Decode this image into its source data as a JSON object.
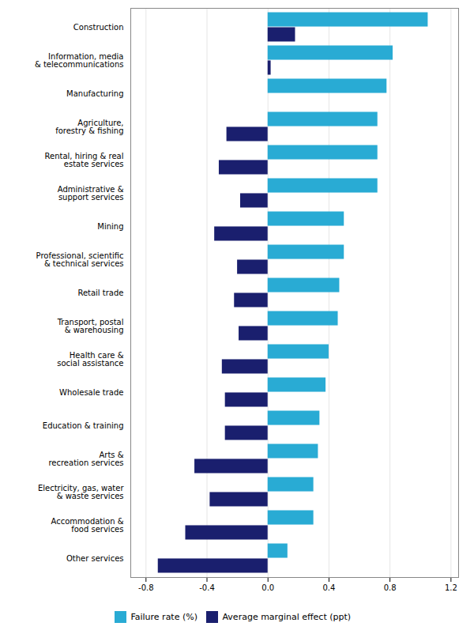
{
  "chart_data": {
    "type": "bar",
    "orientation": "horizontal",
    "categories": [
      "Construction",
      "Information, media\n& telecommunications",
      "Manufacturing",
      "Agriculture,\nforestry & fishing",
      "Rental, hiring & real\nestate services",
      "Administrative &\nsupport services",
      "Mining",
      "Professional, scientific\n& technical services",
      "Retail trade",
      "Transport, postal\n& warehousing",
      "Health care &\nsocial assistance",
      "Wholesale trade",
      "Education & training",
      "Arts &\nrecreation services",
      "Electricity, gas, water\n& waste services",
      "Accommodation &\nfood services",
      "Other services"
    ],
    "series": [
      {
        "name": "Failure rate (%)",
        "color": "#29ABD4",
        "values": [
          1.05,
          0.82,
          0.78,
          0.72,
          0.72,
          0.72,
          0.5,
          0.5,
          0.47,
          0.46,
          0.4,
          0.38,
          0.34,
          0.33,
          0.3,
          0.3,
          0.13
        ]
      },
      {
        "name": "Average marginal effect (ppt)",
        "color": "#1A1F6E",
        "values": [
          0.18,
          0.02,
          0.0,
          -0.27,
          -0.32,
          -0.18,
          -0.35,
          -0.2,
          -0.22,
          -0.19,
          -0.3,
          -0.28,
          -0.28,
          -0.48,
          -0.38,
          -0.54,
          -0.72
        ]
      }
    ],
    "xlim": [
      -0.9,
      1.25
    ],
    "xticks": [
      -0.8,
      -0.4,
      {
        "value": 0,
        "label": "0.0"
      },
      0.4,
      0.8,
      1.2
    ],
    "grid": true,
    "legend": "bottom"
  }
}
